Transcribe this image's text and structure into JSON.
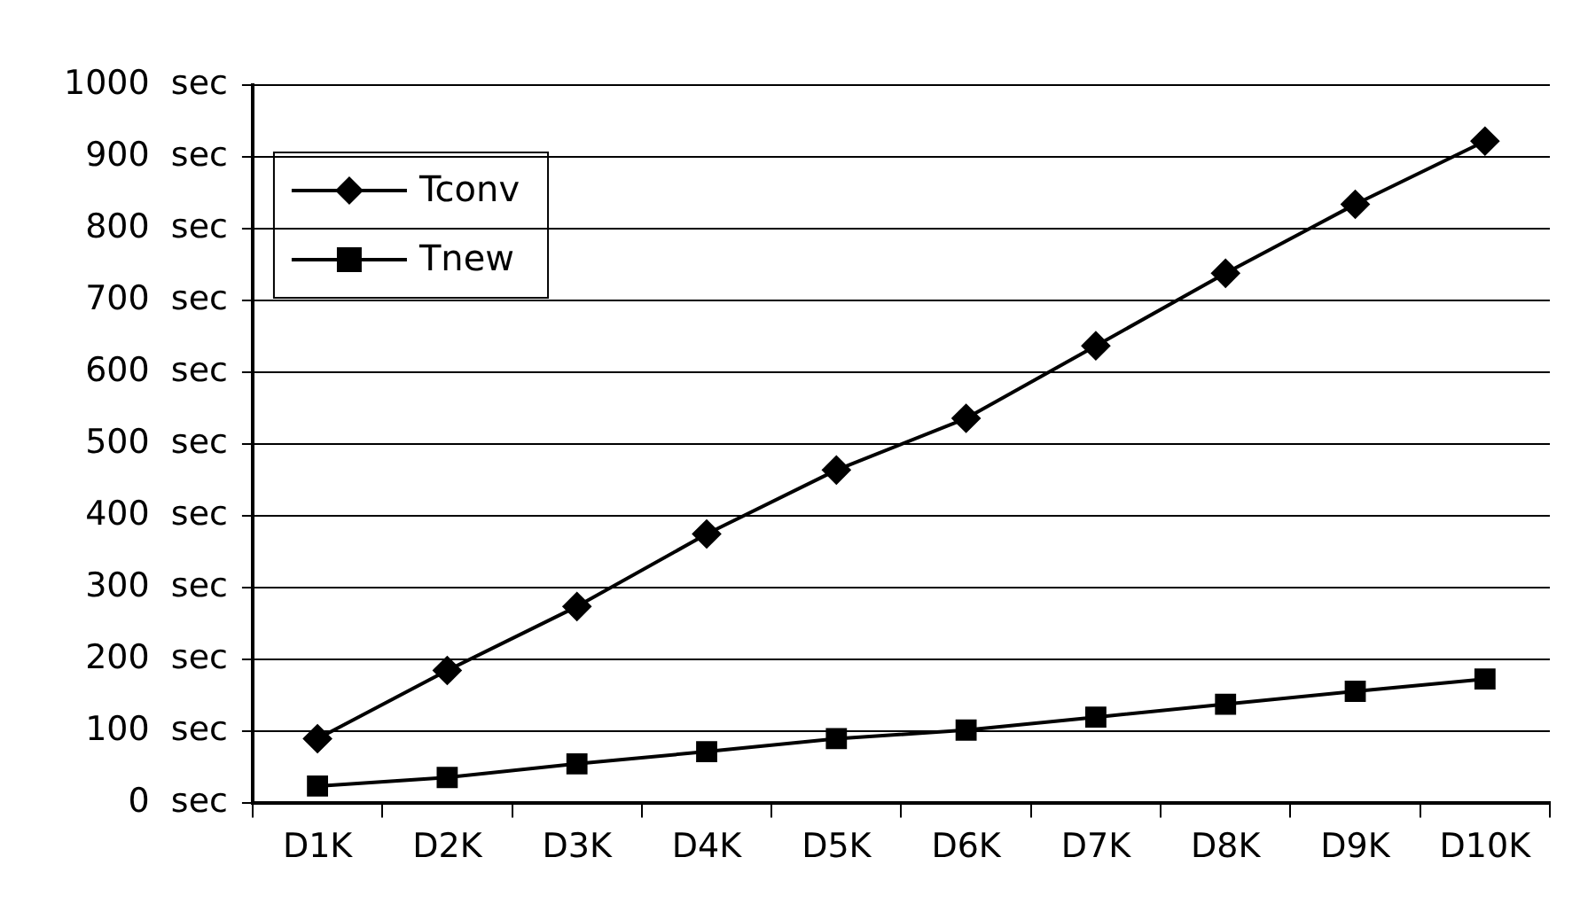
{
  "chart_data": {
    "type": "line",
    "categories": [
      "D1K",
      "D2K",
      "D3K",
      "D4K",
      "D5K",
      "D6K",
      "D7K",
      "D8K",
      "D9K",
      "D10K"
    ],
    "series": [
      {
        "name": "Tconv",
        "color": "#000000",
        "marker": "diamond",
        "values": [
          90,
          185,
          274,
          375,
          464,
          536,
          637,
          738,
          834,
          922
        ]
      },
      {
        "name": "Tnew",
        "color": "#000000",
        "marker": "square",
        "values": [
          24,
          36,
          55,
          72,
          90,
          102,
          120,
          138,
          156,
          173
        ]
      }
    ],
    "ylim": [
      0,
      1000
    ],
    "yticks": [
      {
        "value": 0,
        "label": "0  sec"
      },
      {
        "value": 100,
        "label": "100  sec"
      },
      {
        "value": 200,
        "label": "200  sec"
      },
      {
        "value": 300,
        "label": "300  sec"
      },
      {
        "value": 400,
        "label": "400  sec"
      },
      {
        "value": 500,
        "label": "500  sec"
      },
      {
        "value": 600,
        "label": "600  sec"
      },
      {
        "value": 700,
        "label": "700  sec"
      },
      {
        "value": 800,
        "label": "800  sec"
      },
      {
        "value": 900,
        "label": "900  sec"
      },
      {
        "value": 1000,
        "label": "1000  sec"
      }
    ],
    "grid": "y",
    "legend": "top left",
    "line_style": "solid"
  }
}
